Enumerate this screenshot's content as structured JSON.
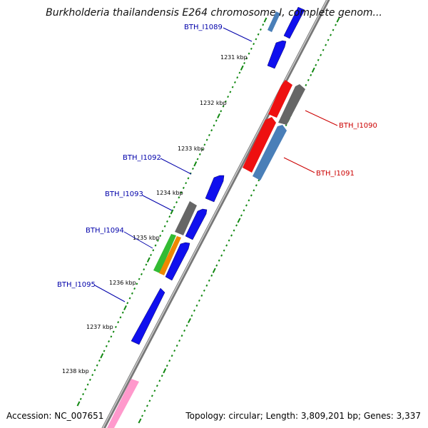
{
  "title": "Burkholderia thailandensis E264 chromosome I, complete genom...",
  "accession": "Accession: NC_007651",
  "summary": "Topology: circular; Length: 3,809,201 bp; Genes: 3,337",
  "scale_labels": [
    "1231 kbp",
    "1232 kbp",
    "1233 kbp",
    "1234 kbp",
    "1235 kbp",
    "1236 kbp",
    "1237 kbp",
    "1238 kbp"
  ],
  "colors": {
    "blue": "#1010ee",
    "red": "#ee1010",
    "gray": "#707070",
    "steelblue": "#4a7fb8",
    "green": "#33bb33",
    "orange": "#ee8800",
    "pink": "#ff99cc",
    "axis": "#888888",
    "ticks": "#118811",
    "label_blue": "#0000aa",
    "label_red": "#cc0000"
  },
  "gene_labels": [
    {
      "name": "BTH_I1089",
      "strand": "forward"
    },
    {
      "name": "BTH_I1090",
      "strand": "reverse"
    },
    {
      "name": "BTH_I1091",
      "strand": "reverse"
    },
    {
      "name": "BTH_I1092",
      "strand": "forward"
    },
    {
      "name": "BTH_I1093",
      "strand": "forward"
    },
    {
      "name": "BTH_I1094",
      "strand": "forward"
    },
    {
      "name": "BTH_I1095",
      "strand": "forward"
    }
  ]
}
